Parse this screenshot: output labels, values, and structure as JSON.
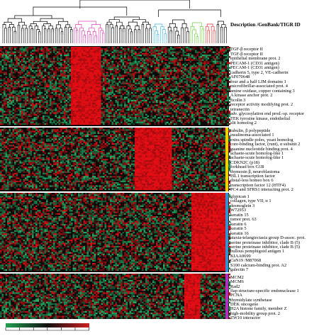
{
  "header": {
    "description_label": "Description /GenBank/TIGR ID"
  },
  "panels": [
    {
      "letter": "A",
      "genes": [
        "TGF-β receptor II",
        "TGF-β receptor II",
        "epithelial membrane prot. 2",
        "PECAM-1 (CD31 antigen)",
        "PECAM-1 (CD31 antigen)",
        "cadherin 5, type 2, VE-cadherin",
        "AF070648",
        "four and a half LIM domains 1",
        "microfibrillar-associated prot. 4",
        "amine oxidase, copper containing 3",
        "A kinase anchor prot. 2",
        "ficolin 3",
        "receptor activity modifying prot. 2",
        "tetranectin",
        "adv. glycosylation end prod.-sp. receptor",
        "TEK tyrosine kinase, endothelial",
        "slit homolog 2"
      ]
    },
    {
      "letter": "B",
      "genes": [
        "tubulin, β polypeptide",
        "insulinoma-associated 1",
        "extra spindle poles, yeast homolog",
        "core-binding factor, (runt), α subunit 2",
        "guanine nucleotide binding prot. 4",
        "achaete-scute homolog-like 1",
        "achaete-scute homolog-like 1",
        "CDKN2C (p18)",
        "forkhead box G1B",
        "thymosin β, neuroblastoma",
        "ISL1 transcription factor",
        "distal-less homeo box 6",
        "transcription factor 12 (HTF4)",
        "PC4 and SFRS1 interacting prot. 2"
      ]
    },
    {
      "letter": "C",
      "genes": [
        "glypican 1",
        "collagen, type VII, α 1",
        "desmoglein 3",
        "W72953",
        "keratin 15",
        "tumor prot. 63",
        "keratin 6",
        "keratin 5",
        "keratin 16",
        "ataxia-telangiectasia group D-assoc. prot.",
        "serine proteinase inhibitor, clade B (5)",
        "serine proteinase inhibitor, clade B (5)",
        "bullous pemphigoid antigen 1",
        "KIAA0699",
        "CaN19 /M87068",
        "S100 calcium-binding prot. A2",
        "galectin 7"
      ]
    },
    {
      "letter": "D",
      "genes": [
        "MCM2",
        "MCM6",
        "Rad2",
        "flap structure-specific endonuclease 1",
        "PCNA",
        "thymidylate synthetase",
        "DEK oncogene",
        "H2A histone family, member Z",
        "high-mobility group prot. 2",
        "ZW10 interactor"
      ]
    }
  ],
  "colors": {
    "high": "#e0201c",
    "low": "#1aa86a",
    "mid": "#0a0a0a",
    "cluster_magenta": "#e040b0",
    "cluster_cyan": "#40b8e0",
    "cluster_green": "#70d040",
    "cluster_red": "#e03030",
    "bar_B": "#f0d000",
    "bar_C": "#3a8fd0",
    "bar_D": "#b030c0"
  },
  "scale_bar": {
    "left_color": "#20a050",
    "right_color": "#d02020"
  }
}
